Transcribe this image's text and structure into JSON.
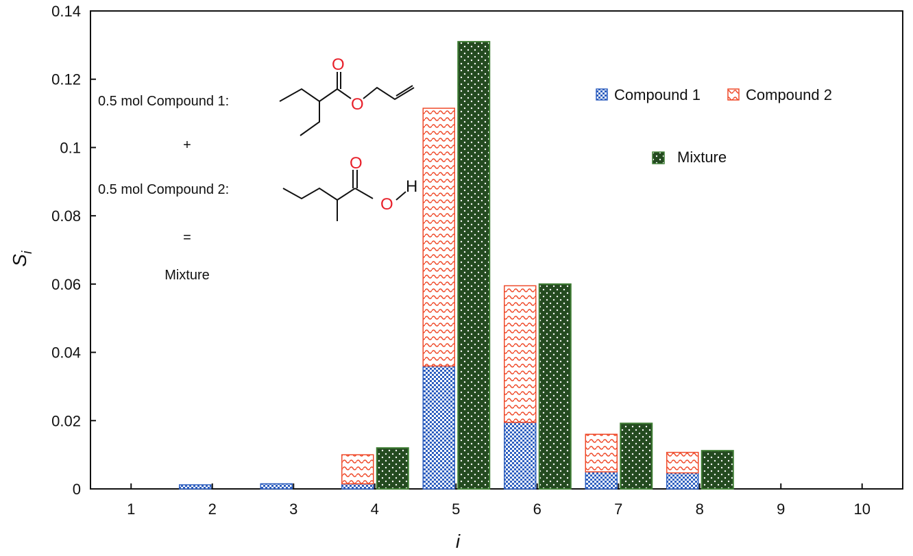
{
  "chart_data": {
    "type": "bar",
    "x_ticks": [
      "1",
      "2",
      "3",
      "4",
      "5",
      "6",
      "7",
      "8",
      "9",
      "10"
    ],
    "ylim": [
      0,
      0.14
    ],
    "y_ticks": [
      "0",
      "0.02",
      "0.04",
      "0.06",
      "0.08",
      "0.1",
      "0.12",
      "0.14"
    ],
    "y_tick_values": [
      0,
      0.02,
      0.04,
      0.06,
      0.08,
      0.1,
      0.12,
      0.14
    ],
    "xlabel": "i",
    "ylabel_main": "S",
    "ylabel_sub": "i",
    "grid": false,
    "legend_placement": "top-right",
    "series": [
      {
        "name": "Compound 1",
        "stack": "components",
        "color": "#2e5fbf",
        "values": [
          0,
          0.0012,
          0.0015,
          0.0015,
          0.036,
          0.0195,
          0.005,
          0.0047,
          0,
          0
        ]
      },
      {
        "name": "Compound 2",
        "stack": "components",
        "color": "#ef4a2a",
        "values": [
          0,
          0,
          0,
          0.0085,
          0.0755,
          0.04,
          0.011,
          0.006,
          0,
          0
        ]
      },
      {
        "name": "Mixture",
        "stack": "mixture",
        "color": "#244a20",
        "values": [
          0,
          0,
          0,
          0.012,
          0.131,
          0.06,
          0.0192,
          0.0112,
          0,
          0
        ]
      }
    ],
    "annotations": {
      "line1": "0.5 mol Compound 1:",
      "plus": "+",
      "line2": "0.5 mol Compound 2:",
      "equals": "=",
      "result": "Mixture",
      "atom_o": "O",
      "atom_h": "H"
    }
  }
}
